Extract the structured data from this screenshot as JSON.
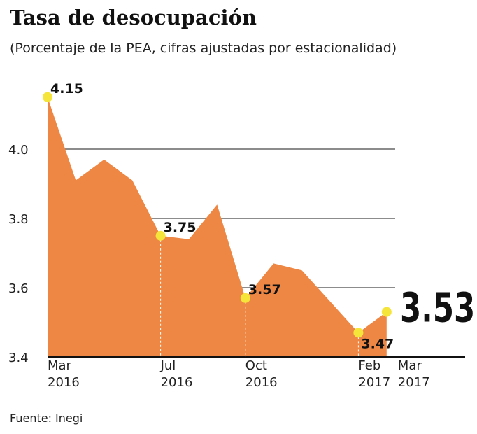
{
  "chart_data": {
    "type": "area",
    "title": "Tasa de desocupación",
    "subtitle": "(Porcentaje de la PEA, cifras ajustadas por estacionalidad)",
    "source": "Fuente: Inegi",
    "categories": [
      "Mar 2016",
      null,
      null,
      null,
      "Jul 2016",
      null,
      null,
      "Oct 2016",
      null,
      null,
      null,
      "Feb 2017",
      "Mar 2017"
    ],
    "values": [
      4.15,
      3.91,
      3.97,
      3.91,
      3.75,
      3.74,
      3.84,
      3.57,
      3.67,
      3.65,
      3.56,
      3.47,
      3.53
    ],
    "value_labels": [
      "4.15",
      null,
      null,
      null,
      "3.75",
      null,
      null,
      "3.57",
      null,
      null,
      null,
      "3.47",
      "3.53"
    ],
    "color": "#ef8744",
    "marker_color": "#f5e43a",
    "ylim": [
      3.4,
      4.2
    ],
    "yticks": [
      {
        "value": 3.4,
        "label": "3.4"
      },
      {
        "value": 3.6,
        "label": "3.6"
      },
      {
        "value": 3.8,
        "label": "3.8"
      },
      {
        "value": 4.0,
        "label": "4.0"
      }
    ],
    "grid": true
  }
}
